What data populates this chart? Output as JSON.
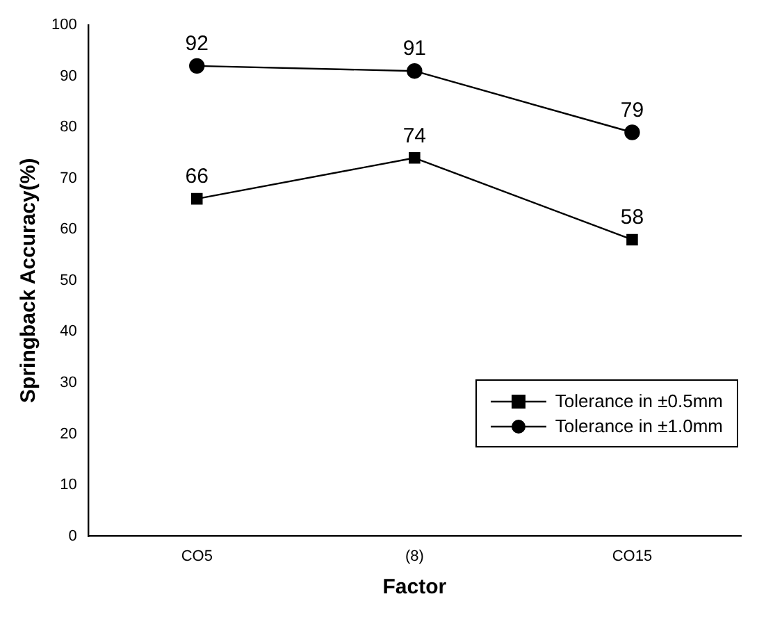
{
  "chart_data": {
    "type": "line",
    "xlabel": "Factor",
    "ylabel": "Springback Accuracy(%)",
    "categories": [
      "CO5",
      "(8)",
      "CO15"
    ],
    "series": [
      {
        "name": "Tolerance in ±0.5mm",
        "color": "#000000",
        "marker": "square",
        "values": [
          66,
          74,
          58
        ]
      },
      {
        "name": "Tolerance in ±1.0mm",
        "color": "#000000",
        "marker": "circle",
        "values": [
          92,
          91,
          79
        ]
      }
    ],
    "ylim": [
      0,
      100
    ],
    "yticks": [
      0,
      10,
      20,
      30,
      40,
      50,
      60,
      70,
      80,
      90,
      100
    ],
    "grid": false,
    "legend": "right",
    "data_labels": true
  }
}
